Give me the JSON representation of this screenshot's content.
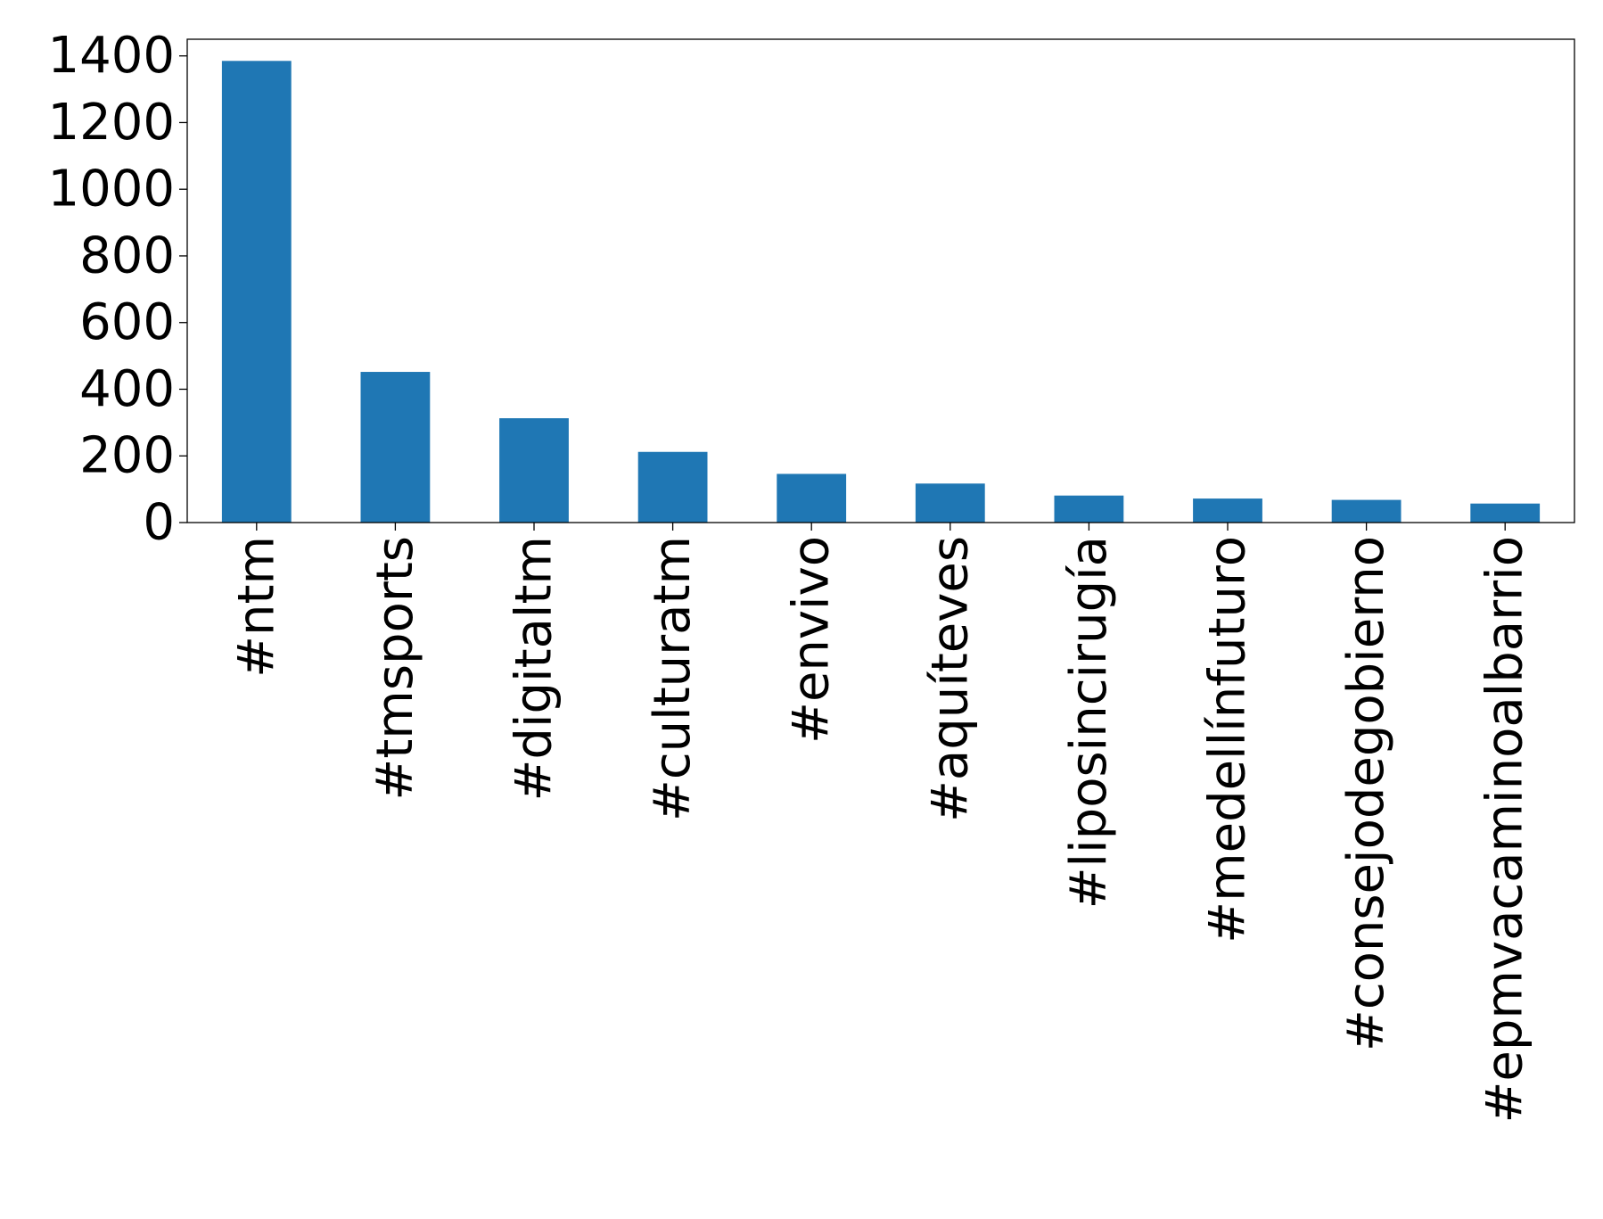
{
  "chart_data": {
    "type": "bar",
    "title": "",
    "xlabel": "",
    "ylabel": "",
    "categories": [
      "#ntm",
      "#tmsports",
      "#digitaltm",
      "#culturatm",
      "#envivo",
      "#aquíteves",
      "#liposincirugía",
      "#medellínfuturo",
      "#consejodegobierno",
      "#epmvacaminoalbarrio"
    ],
    "values": [
      1385,
      452,
      313,
      212,
      146,
      117,
      81,
      72,
      68,
      57
    ],
    "ylim": [
      0,
      1450
    ],
    "yticks": [
      0,
      200,
      400,
      600,
      800,
      1000,
      1200,
      1400
    ],
    "ytick_labels": [
      "0",
      "200",
      "400",
      "600",
      "800",
      "1000",
      "1200",
      "1400"
    ],
    "grid": false,
    "legend": "none",
    "bar_color": "#1f77b4"
  }
}
